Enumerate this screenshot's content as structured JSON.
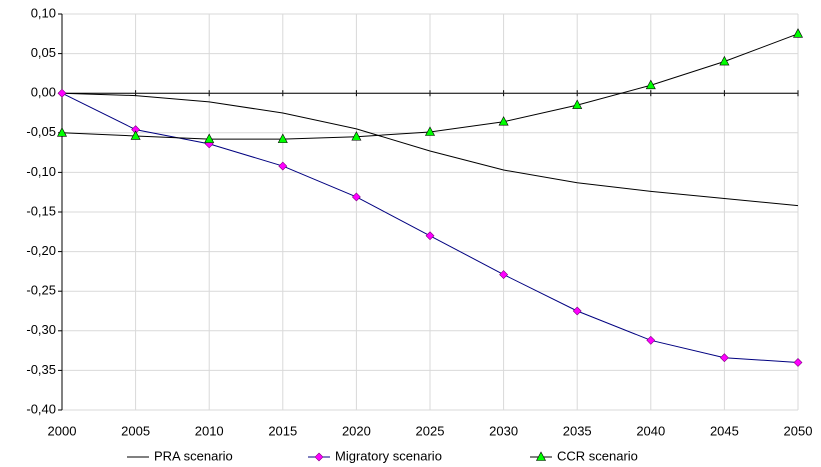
{
  "chart_data": {
    "type": "line",
    "x": [
      2000,
      2005,
      2010,
      2015,
      2020,
      2025,
      2030,
      2035,
      2040,
      2045,
      2050
    ],
    "series": [
      {
        "name": "PRA scenario",
        "color": "#000000",
        "marker": "none",
        "values": [
          0,
          -0.003,
          -0.011,
          -0.025,
          -0.045,
          -0.073,
          -0.097,
          -0.113,
          -0.124,
          -0.133,
          -0.142
        ]
      },
      {
        "name": "Migratory scenario",
        "color": "#000080",
        "marker": "diamond",
        "marker_color": "#ff00ff",
        "values": [
          0,
          -0.046,
          -0.064,
          -0.092,
          -0.131,
          -0.18,
          -0.229,
          -0.275,
          -0.312,
          -0.334,
          -0.34
        ]
      },
      {
        "name": "CCR scenario",
        "color": "#000000",
        "marker": "triangle",
        "marker_color": "#00ff00",
        "values": [
          -0.05,
          -0.054,
          -0.058,
          -0.058,
          -0.055,
          -0.049,
          -0.036,
          -0.015,
          0.01,
          0.04,
          0.075
        ]
      }
    ],
    "xlim": [
      2000,
      2050
    ],
    "xticks": [
      2000,
      2005,
      2010,
      2015,
      2020,
      2025,
      2030,
      2035,
      2040,
      2045,
      2050
    ],
    "ylim": [
      -0.4,
      0.1
    ],
    "yticks": [
      {
        "value": 0.1,
        "label": "0,10"
      },
      {
        "value": 0.05,
        "label": "0,05"
      },
      {
        "value": 0,
        "label": "0,00"
      },
      {
        "value": -0.05,
        "label": "-0,05"
      },
      {
        "value": -0.1,
        "label": "-0,10"
      },
      {
        "value": -0.15,
        "label": "-0,15"
      },
      {
        "value": -0.2,
        "label": "-0,20"
      },
      {
        "value": -0.25,
        "label": "-0,25"
      },
      {
        "value": -0.3,
        "label": "-0,30"
      },
      {
        "value": -0.35,
        "label": "-0,35"
      },
      {
        "value": -0.4,
        "label": "-0,40"
      }
    ],
    "grid": true,
    "legend": "bottom"
  }
}
